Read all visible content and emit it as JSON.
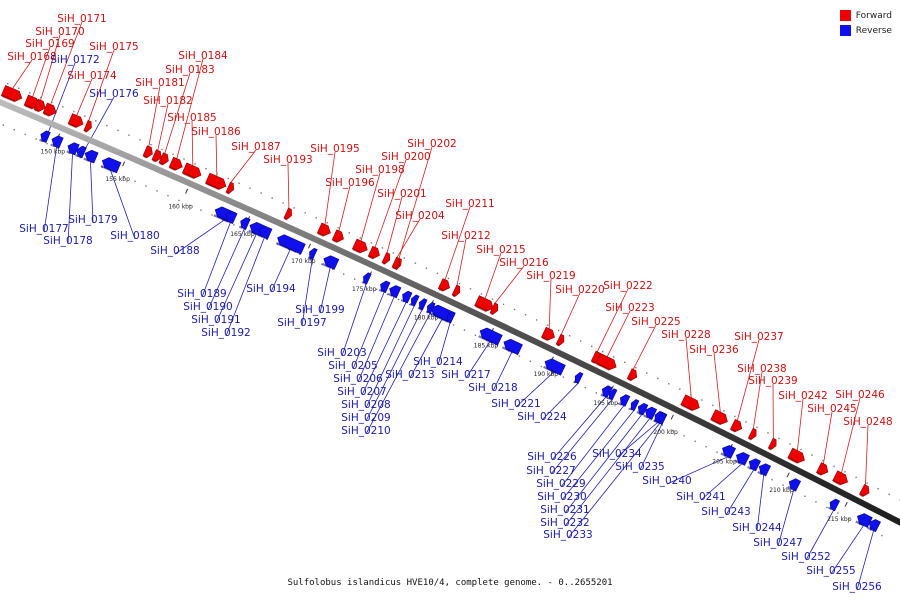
{
  "legend": {
    "forward_label": "Forward",
    "reverse_label": "Reverse",
    "forward_color": "#ee0000",
    "reverse_color": "#1010ee"
  },
  "caption": "Sulfolobus islandicus HVE10/4, complete genome. - 0..2655201",
  "ticks": [
    "150 kbp",
    "155 kbp",
    "160 kbp",
    "165 kbp",
    "170 kbp",
    "175 kbp",
    "180 kbp",
    "185 kbp",
    "190 kbp",
    "195 kbp",
    "200 kbp",
    "205 kbp",
    "210 kbp",
    "215 kbp"
  ],
  "forward_genes": [
    "SiH_0168",
    "SiH_0169",
    "SiH_0170",
    "SiH_0171",
    "SiH_0174",
    "SiH_0175",
    "SiH_0181",
    "SiH_0182",
    "SiH_0183",
    "SiH_0184",
    "SiH_0185",
    "SiH_0186",
    "SiH_0187",
    "SiH_0193",
    "SiH_0195",
    "SiH_0196",
    "SiH_0198",
    "SiH_0200",
    "SiH_0201",
    "SiH_0202",
    "SiH_0204",
    "SiH_0211",
    "SiH_0212",
    "SiH_0215",
    "SiH_0216",
    "SiH_0219",
    "SiH_0220",
    "SiH_0222",
    "SiH_0223",
    "SiH_0225",
    "SiH_0228",
    "SiH_0236",
    "SiH_0237",
    "SiH_0238",
    "SiH_0239",
    "SiH_0242",
    "SiH_0245",
    "SiH_0246",
    "SiH_0248"
  ],
  "reverse_genes": [
    "SiH_0172",
    "SiH_0176",
    "SiH_0177",
    "SiH_0178",
    "SiH_0179",
    "SiH_0180",
    "SiH_0188",
    "SiH_0189",
    "SiH_0190",
    "SiH_0191",
    "SiH_0192",
    "SiH_0194",
    "SiH_0197",
    "SiH_0199",
    "SiH_0203",
    "SiH_0205",
    "SiH_0206",
    "SiH_0207",
    "SiH_0208",
    "SiH_0209",
    "SiH_0210",
    "SiH_0213",
    "SiH_0214",
    "SiH_0217",
    "SiH_0218",
    "SiH_0221",
    "SiH_0224",
    "SiH_0226",
    "SiH_0227",
    "SiH_0229",
    "SiH_0230",
    "SiH_0231",
    "SiH_0232",
    "SiH_0233",
    "SiH_0234",
    "SiH_0235",
    "SiH_0240",
    "SiH_0241",
    "SiH_0243",
    "SiH_0244",
    "SiH_0247",
    "SiH_0252",
    "SiH_0255",
    "SiH_0256"
  ]
}
